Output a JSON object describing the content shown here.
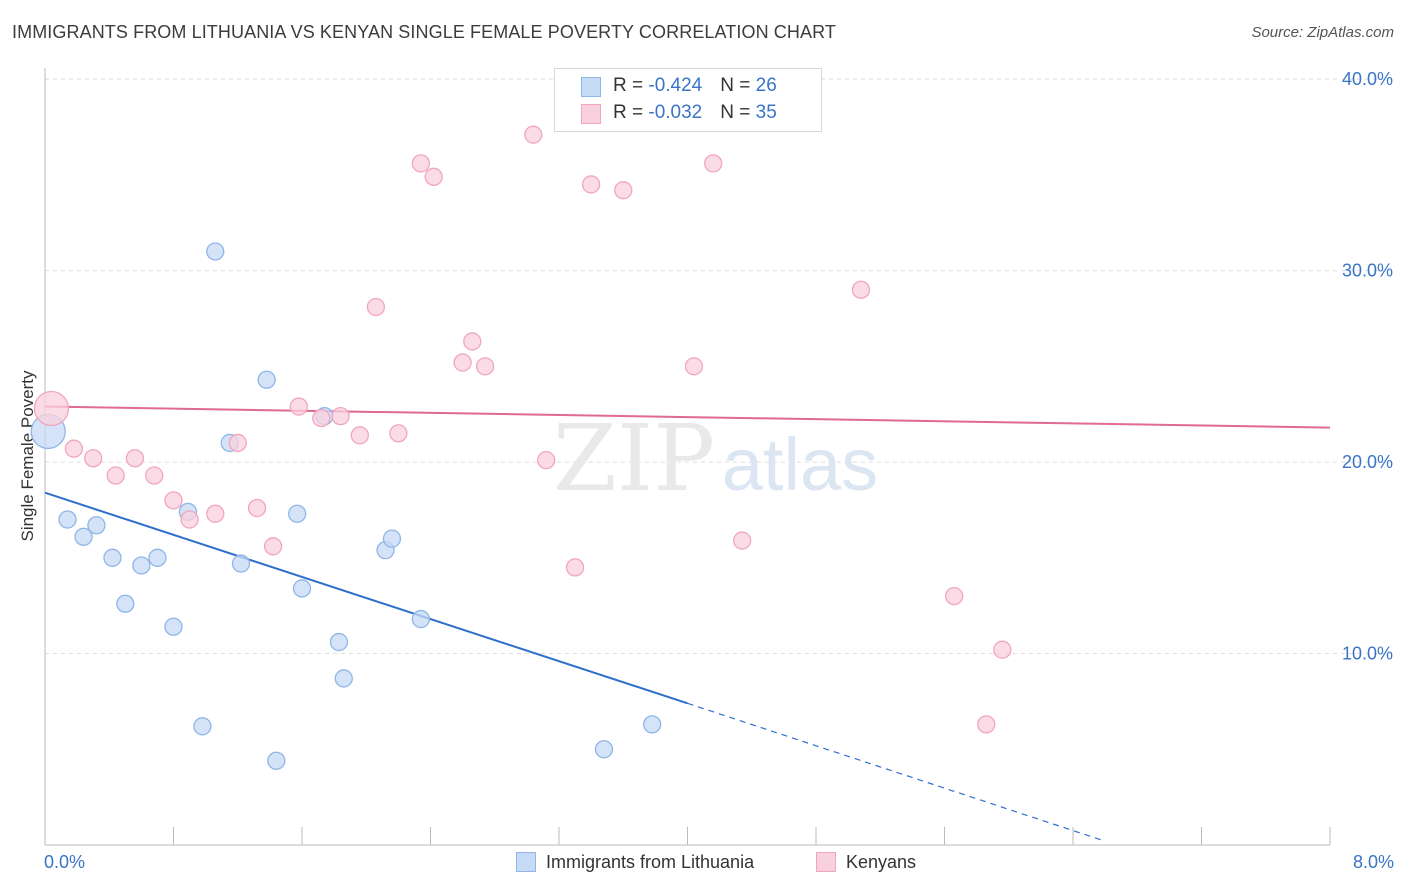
{
  "title": "IMMIGRANTS FROM LITHUANIA VS KENYAN SINGLE FEMALE POVERTY CORRELATION CHART",
  "source": "Source: ZipAtlas.com",
  "watermark": {
    "zip": "ZIP",
    "atlas": "atlas"
  },
  "legend_top": [
    {
      "r_label": "R = ",
      "r_value": "-0.424",
      "n_label": "N = ",
      "n_value": "26"
    },
    {
      "r_label": "R = ",
      "r_value": "-0.032",
      "n_label": "N = ",
      "n_value": "35"
    }
  ],
  "bottom_legend": {
    "series1": "Immigrants from Lithuania",
    "series2": "Kenyans"
  },
  "x_labels": {
    "min": "0.0%",
    "max": "8.0%"
  },
  "chart_data": {
    "type": "scatter",
    "title": "IMMIGRANTS FROM LITHUANIA VS KENYAN SINGLE FEMALE POVERTY CORRELATION CHART",
    "xlabel": "",
    "ylabel": "Single Female Poverty",
    "xlim": [
      0,
      8
    ],
    "ylim": [
      0,
      41
    ],
    "y_ticks": [
      {
        "value": 10,
        "label": "10.0%"
      },
      {
        "value": 20,
        "label": "20.0%"
      },
      {
        "value": 30,
        "label": "30.0%"
      },
      {
        "value": 40,
        "label": "40.0%"
      }
    ],
    "x_ticks": [
      0,
      0.8,
      1.6,
      2.4,
      3.2,
      4.0,
      4.8,
      5.6,
      6.4,
      7.2,
      8.0
    ],
    "grid": true,
    "legend_position": "bottom-center",
    "series": [
      {
        "name": "Immigrants from Lithuania",
        "color": "#8fb6e6",
        "fill": "#c5daf4",
        "line_color": "#2f6fcc",
        "r": -0.424,
        "n": 26,
        "points": [
          {
            "x": 0.02,
            "y": 21.6,
            "big": true
          },
          {
            "x": 0.14,
            "y": 17.0
          },
          {
            "x": 0.24,
            "y": 16.1
          },
          {
            "x": 0.32,
            "y": 16.7
          },
          {
            "x": 0.42,
            "y": 15.0
          },
          {
            "x": 0.5,
            "y": 12.6
          },
          {
            "x": 0.6,
            "y": 14.6
          },
          {
            "x": 0.7,
            "y": 15.0
          },
          {
            "x": 0.8,
            "y": 11.4
          },
          {
            "x": 0.89,
            "y": 17.4
          },
          {
            "x": 0.98,
            "y": 6.2
          },
          {
            "x": 1.06,
            "y": 31.0
          },
          {
            "x": 1.15,
            "y": 21.0
          },
          {
            "x": 1.22,
            "y": 14.7
          },
          {
            "x": 1.38,
            "y": 24.3
          },
          {
            "x": 1.44,
            "y": 4.4
          },
          {
            "x": 1.57,
            "y": 17.3
          },
          {
            "x": 1.6,
            "y": 13.4
          },
          {
            "x": 1.74,
            "y": 22.4
          },
          {
            "x": 1.83,
            "y": 10.6
          },
          {
            "x": 1.86,
            "y": 8.7
          },
          {
            "x": 2.12,
            "y": 15.4
          },
          {
            "x": 2.16,
            "y": 16.0
          },
          {
            "x": 2.34,
            "y": 11.8
          },
          {
            "x": 3.48,
            "y": 5.0
          },
          {
            "x": 3.78,
            "y": 6.3
          }
        ],
        "trend": {
          "x1": 0,
          "y1": 18.4,
          "x2": 4.0,
          "y2": 7.4,
          "dash_to_x": 6.6,
          "dash_to_y": 0.2
        }
      },
      {
        "name": "Kenyans",
        "color": "#f0a6be",
        "fill": "#f9d0dd",
        "line_color": "#e06a90",
        "r": -0.032,
        "n": 35,
        "points": [
          {
            "x": 0.04,
            "y": 22.8,
            "big": true
          },
          {
            "x": 0.18,
            "y": 20.7
          },
          {
            "x": 0.3,
            "y": 20.2
          },
          {
            "x": 0.44,
            "y": 19.3
          },
          {
            "x": 0.56,
            "y": 20.2
          },
          {
            "x": 0.68,
            "y": 19.3
          },
          {
            "x": 0.8,
            "y": 18.0
          },
          {
            "x": 0.9,
            "y": 17.0
          },
          {
            "x": 1.06,
            "y": 17.3
          },
          {
            "x": 1.2,
            "y": 21.0
          },
          {
            "x": 1.32,
            "y": 17.6
          },
          {
            "x": 1.42,
            "y": 15.6
          },
          {
            "x": 1.58,
            "y": 22.9
          },
          {
            "x": 1.72,
            "y": 22.3
          },
          {
            "x": 1.84,
            "y": 22.4
          },
          {
            "x": 1.96,
            "y": 21.4
          },
          {
            "x": 2.06,
            "y": 28.1
          },
          {
            "x": 2.2,
            "y": 21.5
          },
          {
            "x": 2.34,
            "y": 35.6
          },
          {
            "x": 2.42,
            "y": 34.9
          },
          {
            "x": 2.6,
            "y": 25.2
          },
          {
            "x": 2.66,
            "y": 26.3
          },
          {
            "x": 2.74,
            "y": 25.0
          },
          {
            "x": 3.04,
            "y": 37.1
          },
          {
            "x": 3.12,
            "y": 20.1
          },
          {
            "x": 3.3,
            "y": 14.5
          },
          {
            "x": 3.4,
            "y": 34.5
          },
          {
            "x": 3.6,
            "y": 34.2
          },
          {
            "x": 4.04,
            "y": 25.0
          },
          {
            "x": 4.16,
            "y": 35.6
          },
          {
            "x": 4.34,
            "y": 15.9
          },
          {
            "x": 5.08,
            "y": 29.0
          },
          {
            "x": 5.66,
            "y": 13.0
          },
          {
            "x": 5.86,
            "y": 6.3
          },
          {
            "x": 5.96,
            "y": 10.2
          }
        ],
        "trend": {
          "x1": 0,
          "y1": 22.9,
          "x2": 8.0,
          "y2": 21.8
        }
      }
    ]
  }
}
